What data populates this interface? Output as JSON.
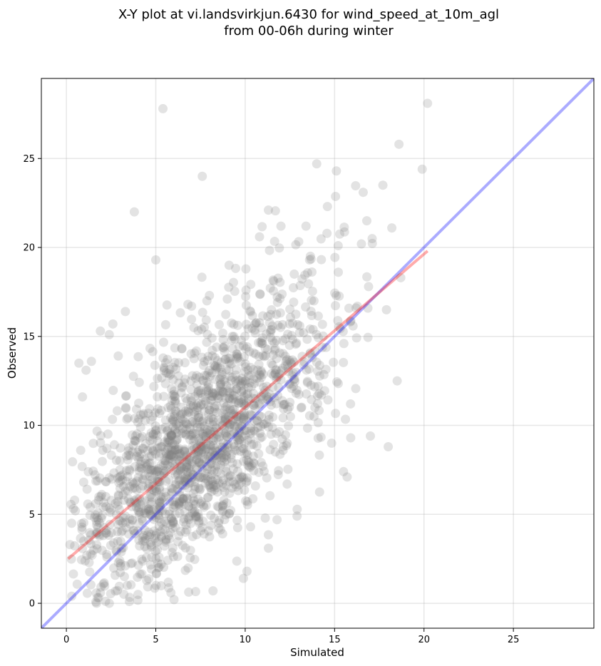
{
  "chart_data": {
    "type": "scatter",
    "title_line1": "X-Y plot at vi.landsvirkjun.6430 for wind_speed_at_10m_agl",
    "title_line2": "from 00-06h during winter",
    "xlabel": "Simulated",
    "ylabel": "Observed",
    "xlim": [
      -1.4,
      29.5
    ],
    "ylim": [
      -1.4,
      29.5
    ],
    "xticks": [
      0,
      5,
      10,
      15,
      20,
      25
    ],
    "yticks": [
      0,
      5,
      10,
      15,
      20,
      25
    ],
    "grid": true,
    "point_color": "#808080",
    "point_alpha": 0.22,
    "identity_line": {
      "x": [
        -1.4,
        29.5
      ],
      "y": [
        -1.4,
        29.5
      ],
      "color": "#0000ff"
    },
    "regression_line": {
      "x": [
        0.1,
        20.2
      ],
      "y": [
        2.5,
        19.8
      ],
      "color": "#ff0000"
    },
    "outlier_points": [
      [
        5.4,
        27.8
      ],
      [
        20.2,
        28.1
      ],
      [
        18.6,
        25.8
      ],
      [
        19.9,
        24.4
      ],
      [
        7.6,
        24.0
      ],
      [
        3.8,
        22.0
      ],
      [
        15.1,
        24.3
      ],
      [
        14.0,
        24.7
      ],
      [
        17.7,
        23.5
      ],
      [
        16.6,
        23.1
      ],
      [
        11.3,
        22.1
      ],
      [
        14.6,
        22.3
      ],
      [
        18.2,
        21.1
      ],
      [
        16.8,
        21.5
      ],
      [
        13.4,
        21.2
      ],
      [
        5.0,
        19.3
      ],
      [
        10.8,
        20.6
      ],
      [
        12.0,
        21.2
      ],
      [
        15.2,
        20.1
      ],
      [
        17.1,
        20.5
      ],
      [
        9.1,
        19.0
      ],
      [
        13.6,
        19.3
      ],
      [
        16.5,
        20.2
      ],
      [
        18.7,
        18.3
      ],
      [
        17.9,
        16.5
      ],
      [
        18.5,
        12.5
      ],
      [
        18.0,
        8.8
      ],
      [
        17.0,
        9.4
      ],
      [
        15.9,
        9.3
      ],
      [
        15.5,
        7.4
      ],
      [
        15.7,
        7.1
      ],
      [
        12.9,
        4.9
      ],
      [
        10.3,
        4.3
      ],
      [
        11.3,
        3.1
      ],
      [
        8.2,
        0.7
      ],
      [
        10.1,
        1.8
      ],
      [
        9.9,
        1.4
      ],
      [
        3.3,
        16.4
      ],
      [
        2.6,
        15.7
      ],
      [
        1.9,
        15.3
      ],
      [
        2.4,
        15.1
      ],
      [
        0.7,
        13.5
      ],
      [
        1.1,
        13.1
      ],
      [
        1.4,
        13.6
      ],
      [
        2.9,
        13.9
      ],
      [
        0.9,
        11.6
      ],
      [
        0.8,
        8.6
      ],
      [
        1.8,
        5.8
      ],
      [
        2.4,
        0.0
      ],
      [
        0.3,
        0.4
      ],
      [
        0.5,
        5.2
      ],
      [
        0.2,
        3.3
      ],
      [
        16.9,
        17.8
      ],
      [
        16.2,
        16.6
      ],
      [
        13.9,
        11.0
      ],
      [
        12.7,
        12.2
      ],
      [
        7.0,
        16.7
      ],
      [
        6.8,
        16.8
      ],
      [
        8.0,
        17.3
      ],
      [
        9.0,
        17.1
      ]
    ],
    "cloud": {
      "count": 1750,
      "seed": 7,
      "x_mean": 7.4,
      "x_sd": 3.75,
      "slope": 0.86,
      "intercept": 2.5,
      "residual_sd": 3.05
    }
  }
}
